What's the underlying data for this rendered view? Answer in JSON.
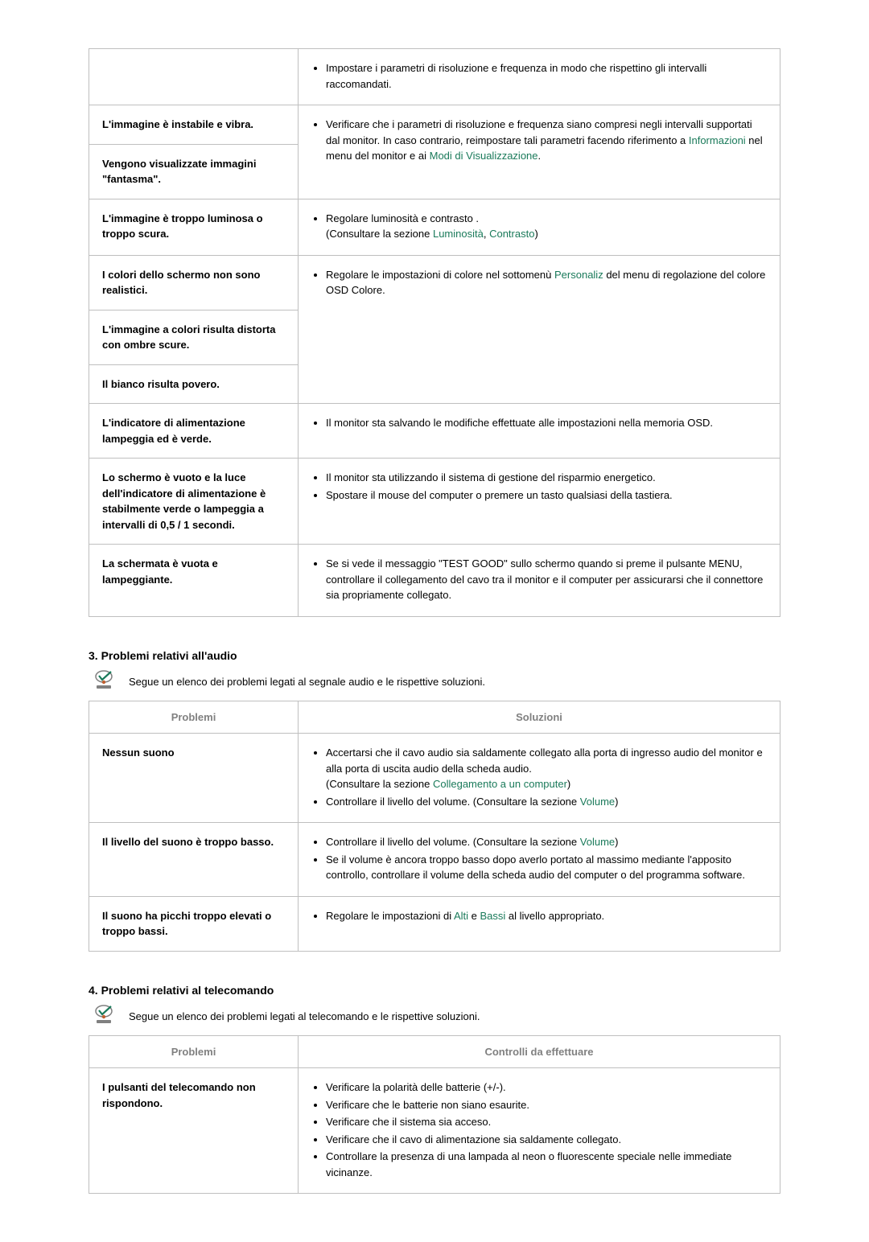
{
  "table1": {
    "rows": [
      {
        "problem": "",
        "solution_items": [
          {
            "text": "Impostare i parametri di risoluzione e frequenza in modo che rispettino gli intervalli raccomandati."
          }
        ]
      },
      {
        "problem": "L'immagine è instabile e vibra.",
        "rowspan_solution": 2,
        "solution_items": [
          {
            "parts": [
              {
                "t": "Verificare che i parametri di risoluzione e frequenza siano compresi negli intervalli supportati dal monitor. In caso contrario, reimpostare tali parametri facendo riferimento a "
              },
              {
                "t": "Informazioni",
                "link": true
              },
              {
                "t": " nel menu del monitor e ai "
              },
              {
                "t": "Modi di Visualizzazione",
                "link": true
              },
              {
                "t": "."
              }
            ]
          }
        ]
      },
      {
        "problem": "Vengono visualizzate immagini \"fantasma\".",
        "merged_above": true
      },
      {
        "problem": "L'immagine è troppo luminosa o troppo scura.",
        "solution_items": [
          {
            "parts": [
              {
                "t": "Regolare luminosità e contrasto ."
              },
              {
                "br": true
              },
              {
                "t": "(Consultare la sezione "
              },
              {
                "t": "Luminosità",
                "link": true
              },
              {
                "t": ", "
              },
              {
                "t": "Contrasto",
                "link": true
              },
              {
                "t": ")"
              }
            ]
          }
        ]
      },
      {
        "problem": "I colori dello schermo non sono realistici.",
        "rowspan_solution": 3,
        "solution_items": [
          {
            "parts": [
              {
                "t": "Regolare le impostazioni di colore nel sottomenù "
              },
              {
                "t": "Personaliz",
                "link": true
              },
              {
                "t": " del menu di regolazione del colore OSD Colore."
              }
            ]
          }
        ]
      },
      {
        "problem": "L'immagine a colori risulta distorta con ombre scure.",
        "merged_above": true
      },
      {
        "problem": "Il bianco risulta povero.",
        "merged_above": true
      },
      {
        "problem": "L'indicatore di alimentazione lampeggia ed è verde.",
        "solution_items": [
          {
            "text": "Il monitor sta salvando le modifiche effettuate alle impostazioni nella memoria OSD."
          }
        ]
      },
      {
        "problem": "Lo schermo è vuoto e la luce dell'indicatore di alimentazione è stabilmente verde o lampeggia a intervalli di 0,5 / 1 secondi.",
        "solution_items": [
          {
            "text": "Il monitor sta utilizzando il sistema di gestione del risparmio energetico."
          },
          {
            "text": "Spostare il mouse del computer o premere un tasto qualsiasi della tastiera."
          }
        ]
      },
      {
        "problem": "La schermata è vuota e lampeggiante.",
        "solution_items": [
          {
            "text": "Se si vede il messaggio \"TEST GOOD\" sullo schermo quando si preme il pulsante MENU, controllare il collegamento del cavo tra il monitor e il computer per assicurarsi che il connettore sia propriamente collegato."
          }
        ]
      }
    ]
  },
  "section3": {
    "title": "3. Problemi relativi all'audio",
    "intro": "Segue un elenco dei problemi legati al segnale audio e le rispettive soluzioni.",
    "headers": {
      "p": "Problemi",
      "s": "Soluzioni"
    },
    "rows": [
      {
        "problem": "Nessun suono",
        "solution_items": [
          {
            "parts": [
              {
                "t": "Accertarsi che il cavo audio sia saldamente collegato alla porta di ingresso audio del monitor e alla porta di uscita audio della scheda audio."
              },
              {
                "br": true
              },
              {
                "t": "(Consultare la sezione "
              },
              {
                "t": "Collegamento a un computer",
                "link": true
              },
              {
                "t": ")"
              }
            ]
          },
          {
            "parts": [
              {
                "t": "Controllare il livello del volume. (Consultare la sezione "
              },
              {
                "t": "Volume",
                "link": true
              },
              {
                "t": ")"
              }
            ]
          }
        ]
      },
      {
        "problem": "Il livello del suono è troppo basso.",
        "solution_items": [
          {
            "parts": [
              {
                "t": "Controllare il livello del volume. (Consultare la sezione "
              },
              {
                "t": "Volume",
                "link": true
              },
              {
                "t": ")"
              }
            ]
          },
          {
            "text": "Se il volume è ancora troppo basso dopo averlo portato al massimo mediante l'apposito controllo, controllare il volume della scheda audio del computer o del programma software."
          }
        ]
      },
      {
        "problem": "Il suono ha picchi troppo elevati o troppo bassi.",
        "solution_items": [
          {
            "parts": [
              {
                "t": "Regolare le impostazioni di "
              },
              {
                "t": "Alti",
                "link": true
              },
              {
                "t": " e "
              },
              {
                "t": "Bassi",
                "link": true
              },
              {
                "t": " al livello appropriato."
              }
            ]
          }
        ]
      }
    ]
  },
  "section4": {
    "title": "4. Problemi relativi al telecomando",
    "intro": "Segue un elenco dei problemi legati al telecomando e le rispettive soluzioni.",
    "headers": {
      "p": "Problemi",
      "s": "Controlli da effettuare"
    },
    "rows": [
      {
        "problem": "I pulsanti del telecomando non rispondono.",
        "solution_items": [
          {
            "text": "Verificare la polarità delle batterie (+/-)."
          },
          {
            "text": "Verificare che le batterie non siano esaurite."
          },
          {
            "text": "Verificare che il sistema sia acceso."
          },
          {
            "text": "Verificare che il cavo di alimentazione sia saldamente collegato."
          },
          {
            "text": "Controllare la presenza di una lampada al neon o fluorescente speciale nelle immediate vicinanze."
          }
        ]
      }
    ]
  }
}
